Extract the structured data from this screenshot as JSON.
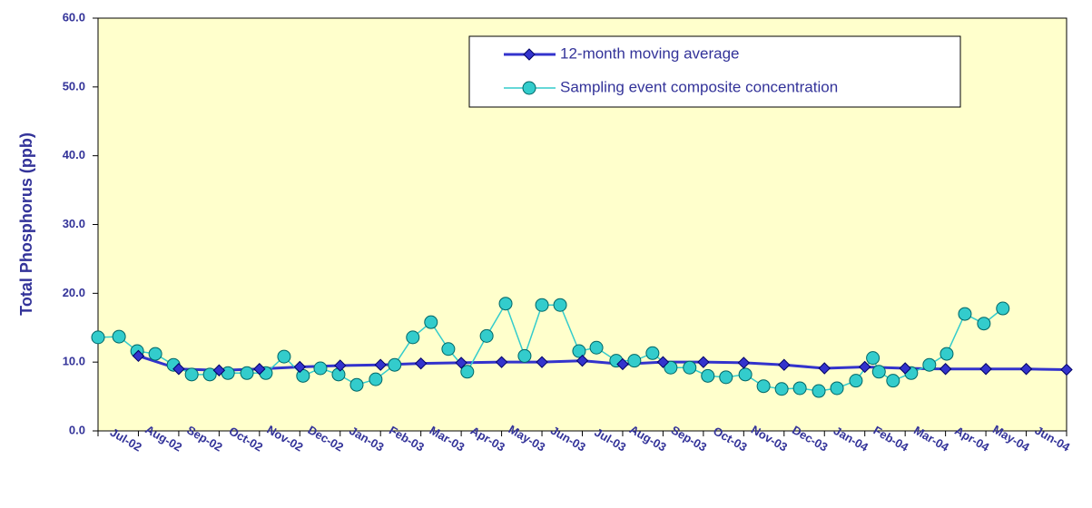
{
  "chart_data": {
    "type": "line",
    "ylabel": "Total Phosphorus (ppb)",
    "xlim": [
      0,
      24
    ],
    "xticks": [
      {
        "value": 1,
        "label": "Jul-02"
      },
      {
        "value": 2,
        "label": "Aug-02"
      },
      {
        "value": 3,
        "label": "Sep-02"
      },
      {
        "value": 4,
        "label": "Oct-02"
      },
      {
        "value": 5,
        "label": "Nov-02"
      },
      {
        "value": 6,
        "label": "Dec-02"
      },
      {
        "value": 7,
        "label": "Jan-03"
      },
      {
        "value": 8,
        "label": "Feb-03"
      },
      {
        "value": 9,
        "label": "Mar-03"
      },
      {
        "value": 10,
        "label": "Apr-03"
      },
      {
        "value": 11,
        "label": "May-03"
      },
      {
        "value": 12,
        "label": "Jun-03"
      },
      {
        "value": 13,
        "label": "Jul-03"
      },
      {
        "value": 14,
        "label": "Aug-03"
      },
      {
        "value": 15,
        "label": "Sep-03"
      },
      {
        "value": 16,
        "label": "Oct-03"
      },
      {
        "value": 17,
        "label": "Nov-03"
      },
      {
        "value": 18,
        "label": "Dec-03"
      },
      {
        "value": 19,
        "label": "Jan-04"
      },
      {
        "value": 20,
        "label": "Feb-04"
      },
      {
        "value": 21,
        "label": "Mar-04"
      },
      {
        "value": 22,
        "label": "Apr-04"
      },
      {
        "value": 23,
        "label": "May-04"
      },
      {
        "value": 24,
        "label": "Jun-04"
      }
    ],
    "ylim": [
      0,
      60
    ],
    "yticks": [
      {
        "value": 0,
        "label": "0.0"
      },
      {
        "value": 10,
        "label": "10.0"
      },
      {
        "value": 20,
        "label": "20.0"
      },
      {
        "value": 30,
        "label": "30.0"
      },
      {
        "value": 40,
        "label": "40.0"
      },
      {
        "value": 50,
        "label": "50.0"
      },
      {
        "value": 60,
        "label": "60.0"
      }
    ],
    "plot_background": "#ffffcc",
    "series": [
      {
        "name": "12-month moving average",
        "color": "#3333cc",
        "marker": "diamond",
        "x": [
          1,
          2,
          3,
          4,
          5,
          6,
          7,
          8,
          9,
          10,
          11,
          12,
          13,
          14,
          15,
          16,
          17,
          18,
          19,
          20,
          21,
          22,
          23,
          24
        ],
        "values": [
          10.9,
          9.0,
          8.8,
          9.0,
          9.3,
          9.5,
          9.6,
          9.8,
          9.9,
          10.0,
          10.0,
          10.2,
          9.7,
          10.0,
          10.0,
          9.9,
          9.6,
          9.1,
          9.3,
          9.1,
          9.0,
          9.0,
          9.0,
          8.9
        ]
      },
      {
        "name": "Sampling event composite concentration",
        "color": "#33cccc",
        "marker": "circle",
        "x": [
          0,
          0.52,
          0.97,
          1.42,
          1.87,
          2.32,
          2.77,
          3.22,
          3.69,
          4.16,
          4.61,
          5.08,
          5.51,
          5.96,
          6.41,
          6.88,
          7.35,
          7.8,
          8.25,
          8.68,
          9.15,
          9.63,
          10.1,
          10.57,
          11.0,
          11.45,
          11.92,
          12.35,
          12.84,
          13.29,
          13.74,
          14.19,
          14.66,
          15.11,
          15.56,
          16.04,
          16.49,
          16.94,
          17.39,
          17.86,
          18.31,
          18.78,
          19.2,
          19.35,
          19.7,
          20.15,
          20.6,
          21.03,
          21.48,
          21.95,
          22.42
        ],
        "values": [
          13.6,
          13.7,
          11.6,
          11.2,
          9.6,
          8.2,
          8.2,
          8.4,
          8.4,
          8.4,
          10.8,
          8.0,
          9.1,
          8.2,
          6.7,
          7.5,
          9.6,
          13.6,
          15.8,
          11.9,
          8.6,
          13.8,
          18.5,
          10.9,
          18.3,
          18.3,
          11.6,
          12.1,
          10.2,
          10.2,
          11.3,
          9.2,
          9.2,
          8.0,
          7.8,
          8.2,
          6.5,
          6.1,
          6.2,
          5.8,
          6.2,
          7.3,
          10.6,
          8.6,
          7.3,
          8.4,
          9.6,
          11.2,
          17.0,
          15.6,
          17.8
        ]
      }
    ]
  }
}
